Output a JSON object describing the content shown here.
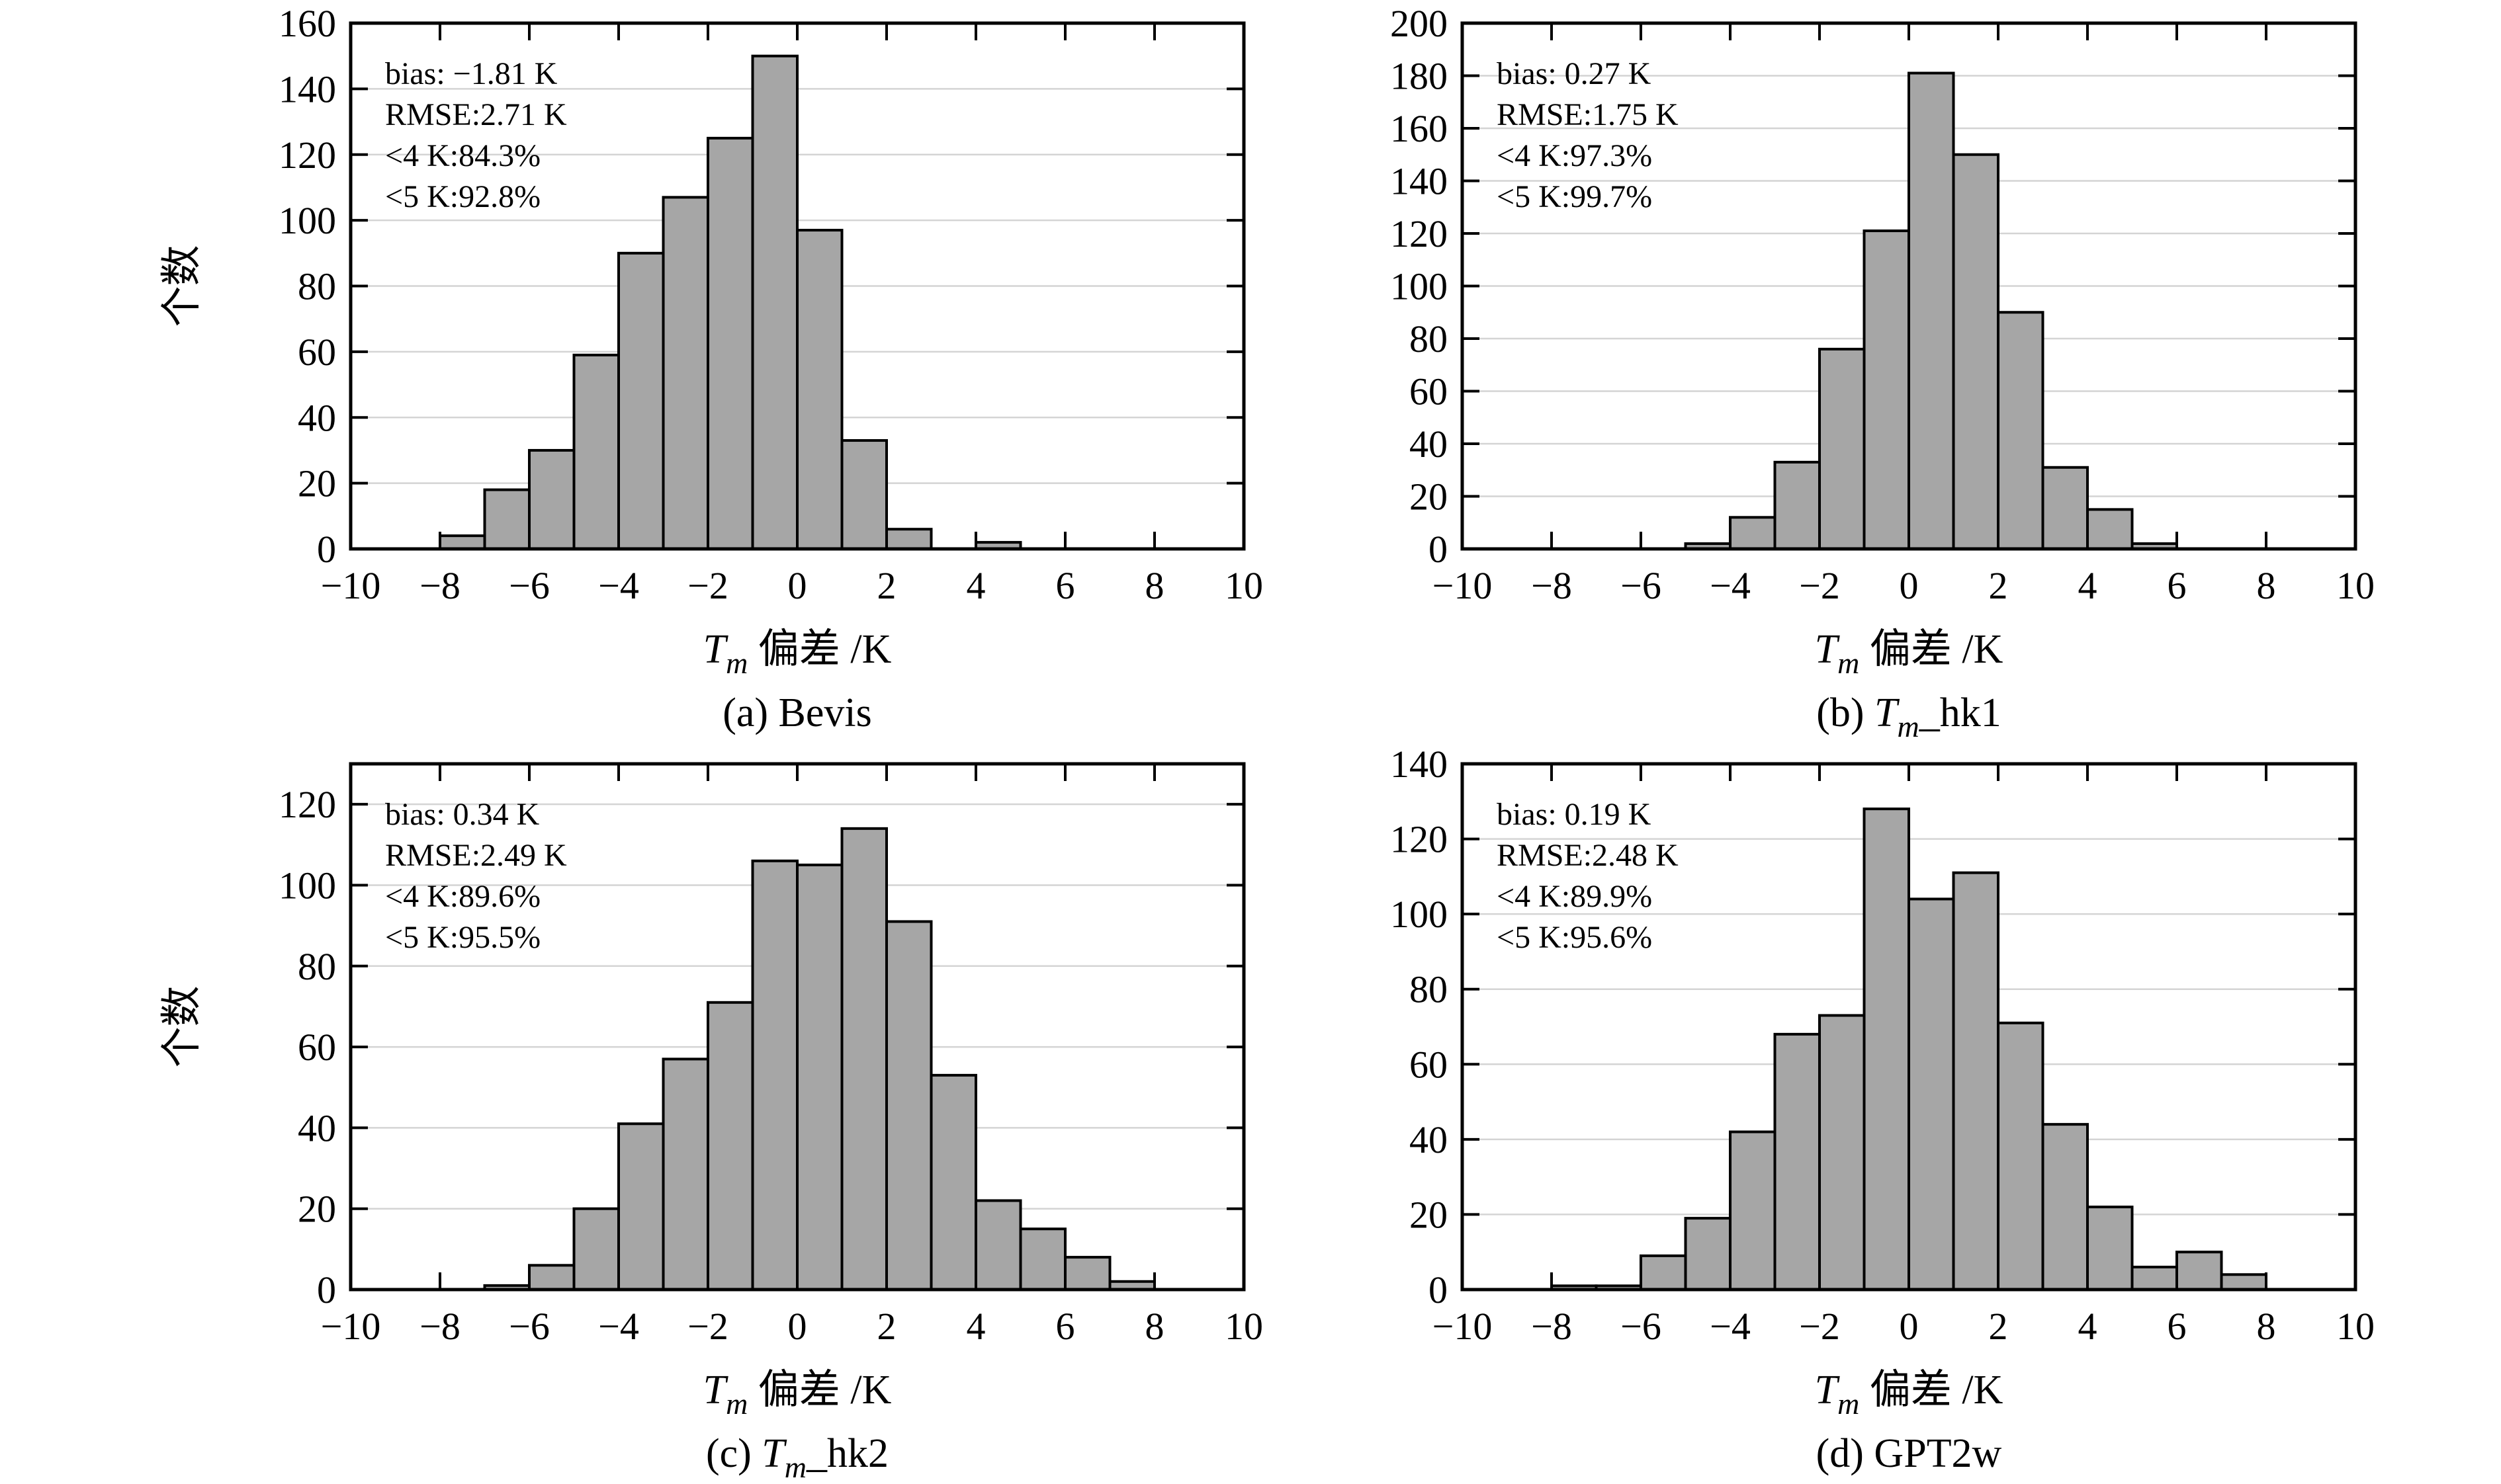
{
  "figure": {
    "background": "#ffffff",
    "bar_fill": "#a6a6a6",
    "bar_edge": "#000000",
    "grid_color": "#d4d4d4",
    "frame_color": "#000000",
    "ylabel": "个数",
    "xlabel_rich": [
      {
        "text": "T",
        "style": "italic"
      },
      {
        "text": "m",
        "style": "sub"
      },
      {
        "text": " 偏差 /K",
        "style": "normal"
      }
    ],
    "xticks": [
      -10,
      -8,
      -6,
      -4,
      -2,
      0,
      2,
      4,
      6,
      8,
      10
    ]
  },
  "chart_data": [
    {
      "type": "bar",
      "panel_id": "a",
      "caption_rich": [
        {
          "text": "(a) Bevis",
          "style": "normal"
        }
      ],
      "annotation": [
        "bias: −1.81 K",
        "RMSE:2.71 K",
        "<4 K:84.3%",
        "<5 K:92.8%"
      ],
      "bins_start": -8,
      "bin_width": 1,
      "values": [
        4,
        18,
        30,
        59,
        90,
        107,
        125,
        150,
        97,
        33,
        6,
        0,
        2
      ],
      "xlim": [
        -10,
        10
      ],
      "ylim": [
        0,
        160
      ],
      "ytick_step": 20,
      "ytick_label_max": 160,
      "grid": true,
      "show_ylabel": true
    },
    {
      "type": "bar",
      "panel_id": "b",
      "caption_rich": [
        {
          "text": "(b) ",
          "style": "normal"
        },
        {
          "text": "T",
          "style": "italic"
        },
        {
          "text": "m",
          "style": "sub"
        },
        {
          "text": "_hk1",
          "style": "normal"
        }
      ],
      "annotation": [
        "bias: 0.27 K",
        "RMSE:1.75 K",
        "<4 K:97.3%",
        "<5 K:99.7%"
      ],
      "bins_start": -5,
      "bin_width": 1,
      "values": [
        2,
        12,
        33,
        76,
        121,
        181,
        150,
        90,
        31,
        15,
        2
      ],
      "xlim": [
        -10,
        10
      ],
      "ylim": [
        0,
        200
      ],
      "ytick_step": 20,
      "ytick_label_max": 200,
      "grid": true,
      "show_ylabel": false
    },
    {
      "type": "bar",
      "panel_id": "c",
      "caption_rich": [
        {
          "text": "(c) ",
          "style": "normal"
        },
        {
          "text": "T",
          "style": "italic"
        },
        {
          "text": "m",
          "style": "sub"
        },
        {
          "text": "_hk2",
          "style": "normal"
        }
      ],
      "annotation": [
        "bias: 0.34 K",
        "RMSE:2.49 K",
        "<4 K:89.6%",
        "<5 K:95.5%"
      ],
      "bins_start": -7,
      "bin_width": 1,
      "values": [
        1,
        6,
        20,
        41,
        57,
        71,
        106,
        105,
        114,
        91,
        53,
        22,
        15,
        8,
        2
      ],
      "xlim": [
        -10,
        10
      ],
      "ylim": [
        0,
        130
      ],
      "ytick_step": 20,
      "ytick_label_max": 120,
      "grid": true,
      "show_ylabel": true
    },
    {
      "type": "bar",
      "panel_id": "d",
      "caption_rich": [
        {
          "text": "(d) GPT2w",
          "style": "normal"
        }
      ],
      "annotation": [
        "bias: 0.19 K",
        "RMSE:2.48 K",
        "<4 K:89.9%",
        "<5 K:95.6%"
      ],
      "bins_start": -8,
      "bin_width": 1,
      "values": [
        1,
        1,
        9,
        19,
        42,
        68,
        73,
        128,
        104,
        111,
        71,
        44,
        22,
        6,
        10,
        4
      ],
      "xlim": [
        -10,
        10
      ],
      "ylim": [
        0,
        140
      ],
      "ytick_step": 20,
      "ytick_label_max": 140,
      "grid": true,
      "show_ylabel": false
    }
  ]
}
